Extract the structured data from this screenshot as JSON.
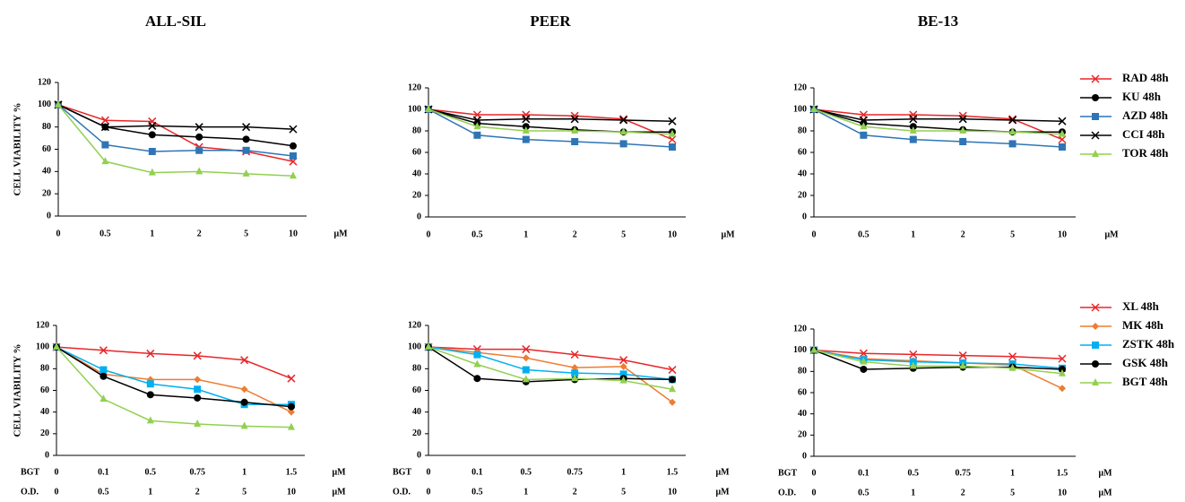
{
  "chart_data": [
    {
      "type": "line",
      "title": "ALL-SIL",
      "ylabel": "CELL VIABILITY %",
      "categories": [
        "0",
        "0.5",
        "1",
        "2",
        "5",
        "10"
      ],
      "x_unit": "μM",
      "ylim": [
        0,
        120
      ],
      "yticks": [
        0,
        20,
        40,
        60,
        80,
        100,
        120
      ],
      "series": [
        {
          "color": "#e8262a",
          "marker": "x",
          "values": [
            100,
            86,
            85,
            62,
            58,
            49
          ]
        },
        {
          "color": "#000000",
          "marker": "circle",
          "values": [
            100,
            80,
            73,
            71,
            69,
            63
          ]
        },
        {
          "color": "#2e75b6",
          "marker": "square",
          "values": [
            100,
            64,
            58,
            59,
            59,
            54
          ]
        },
        {
          "color": "#000000",
          "marker": "x",
          "values": [
            100,
            80,
            81,
            80,
            80,
            78
          ]
        },
        {
          "color": "#92d050",
          "marker": "triangle",
          "values": [
            100,
            49,
            39,
            40,
            38,
            36
          ]
        }
      ]
    },
    {
      "type": "line",
      "title": "PEER",
      "categories": [
        "0",
        "0.5",
        "1",
        "2",
        "5",
        "10"
      ],
      "x_unit": "μM",
      "ylim": [
        0,
        120
      ],
      "yticks": [
        0,
        20,
        40,
        60,
        80,
        100,
        120
      ],
      "series": [
        {
          "color": "#e8262a",
          "marker": "x",
          "values": [
            100,
            95,
            95,
            94,
            91,
            72
          ]
        },
        {
          "color": "#000000",
          "marker": "circle",
          "values": [
            100,
            87,
            84,
            81,
            79,
            79
          ]
        },
        {
          "color": "#2e75b6",
          "marker": "square",
          "values": [
            100,
            76,
            72,
            70,
            68,
            65
          ]
        },
        {
          "color": "#000000",
          "marker": "x",
          "values": [
            100,
            90,
            91,
            91,
            90,
            89
          ]
        },
        {
          "color": "#92d050",
          "marker": "triangle",
          "values": [
            100,
            84,
            80,
            80,
            79,
            77
          ]
        }
      ]
    },
    {
      "type": "line",
      "title": "BE-13",
      "categories": [
        "0",
        "0.5",
        "1",
        "2",
        "5",
        "10"
      ],
      "x_unit": "μM",
      "ylim": [
        0,
        120
      ],
      "yticks": [
        0,
        20,
        40,
        60,
        80,
        100,
        120
      ],
      "legend": "right",
      "series": [
        {
          "name": "RAD 48h",
          "color": "#e8262a",
          "marker": "x",
          "values": [
            100,
            95,
            95,
            94,
            91,
            72
          ]
        },
        {
          "name": "KU 48h",
          "color": "#000000",
          "marker": "circle",
          "values": [
            100,
            87,
            84,
            81,
            79,
            79
          ]
        },
        {
          "name": "AZD 48h",
          "color": "#2e75b6",
          "marker": "square",
          "values": [
            100,
            76,
            72,
            70,
            68,
            65
          ]
        },
        {
          "name": "CCI 48h",
          "color": "#000000",
          "marker": "x",
          "values": [
            100,
            90,
            91,
            91,
            90,
            89
          ]
        },
        {
          "name": "TOR 48h",
          "color": "#92d050",
          "marker": "triangle",
          "values": [
            100,
            84,
            80,
            80,
            79,
            77
          ]
        }
      ]
    },
    {
      "type": "line",
      "ylabel": "CELL VIABILITY %",
      "category_rows": [
        {
          "label": "BGT",
          "categories": [
            "0",
            "0.1",
            "0.5",
            "0.75",
            "1",
            "1.5"
          ],
          "unit": "μM"
        },
        {
          "label": "O.D.",
          "categories": [
            "0",
            "0.5",
            "1",
            "2",
            "5",
            "10"
          ],
          "unit": "μM"
        }
      ],
      "ylim": [
        0,
        120
      ],
      "yticks": [
        0,
        20,
        40,
        60,
        80,
        100,
        120
      ],
      "series": [
        {
          "color": "#e8262a",
          "marker": "x",
          "values": [
            100,
            97,
            94,
            92,
            88,
            71
          ]
        },
        {
          "color": "#ed7d31",
          "marker": "diamond",
          "values": [
            100,
            75,
            70,
            70,
            61,
            40
          ]
        },
        {
          "color": "#00b0f0",
          "marker": "square",
          "values": [
            100,
            79,
            66,
            61,
            47,
            47
          ]
        },
        {
          "color": "#000000",
          "marker": "circle",
          "values": [
            100,
            73,
            56,
            53,
            49,
            45
          ]
        },
        {
          "color": "#92d050",
          "marker": "triangle",
          "values": [
            100,
            52,
            32,
            29,
            27,
            26
          ]
        }
      ]
    },
    {
      "type": "line",
      "category_rows": [
        {
          "label": "BGT",
          "categories": [
            "0",
            "0.1",
            "0.5",
            "0.75",
            "1",
            "1.5"
          ],
          "unit": "μM"
        },
        {
          "label": "O.D.",
          "categories": [
            "0",
            "0.5",
            "1",
            "2",
            "5",
            "10"
          ],
          "unit": "μM"
        }
      ],
      "ylim": [
        0,
        120
      ],
      "yticks": [
        0,
        20,
        40,
        60,
        80,
        100,
        120
      ],
      "series": [
        {
          "color": "#e8262a",
          "marker": "x",
          "values": [
            100,
            98,
            98,
            93,
            88,
            79
          ]
        },
        {
          "color": "#ed7d31",
          "marker": "diamond",
          "values": [
            100,
            95,
            90,
            81,
            82,
            49
          ]
        },
        {
          "color": "#00b0f0",
          "marker": "square",
          "values": [
            100,
            93,
            79,
            76,
            75,
            70
          ]
        },
        {
          "color": "#000000",
          "marker": "circle",
          "values": [
            100,
            71,
            68,
            70,
            71,
            70
          ]
        },
        {
          "color": "#92d050",
          "marker": "triangle",
          "values": [
            100,
            84,
            70,
            71,
            69,
            61
          ]
        }
      ]
    },
    {
      "type": "line",
      "legend": "right",
      "category_rows": [
        {
          "label": "BGT",
          "categories": [
            "0",
            "0.1",
            "0.5",
            "0.75",
            "1",
            "1.5"
          ],
          "unit": "μM"
        },
        {
          "label": "O.D.",
          "categories": [
            "0",
            "0.5",
            "1",
            "2",
            "5",
            "10"
          ],
          "unit": "μM"
        }
      ],
      "ylim": [
        0,
        120
      ],
      "yticks": [
        0,
        20,
        40,
        60,
        80,
        100,
        120
      ],
      "series": [
        {
          "name": "XL 48h",
          "color": "#e8262a",
          "marker": "x",
          "values": [
            100,
            97,
            96,
            95,
            94,
            92
          ]
        },
        {
          "name": "MK 48h",
          "color": "#ed7d31",
          "marker": "diamond",
          "values": [
            100,
            92,
            90,
            88,
            86,
            64
          ]
        },
        {
          "name": "ZSTK 48h",
          "color": "#00b0f0",
          "marker": "square",
          "values": [
            100,
            91,
            89,
            88,
            87,
            83
          ]
        },
        {
          "name": "GSK 48h",
          "color": "#000000",
          "marker": "circle",
          "values": [
            100,
            82,
            83,
            84,
            84,
            82
          ]
        },
        {
          "name": "BGT 48h",
          "color": "#92d050",
          "marker": "triangle",
          "values": [
            100,
            89,
            85,
            85,
            83,
            78
          ]
        }
      ]
    }
  ]
}
